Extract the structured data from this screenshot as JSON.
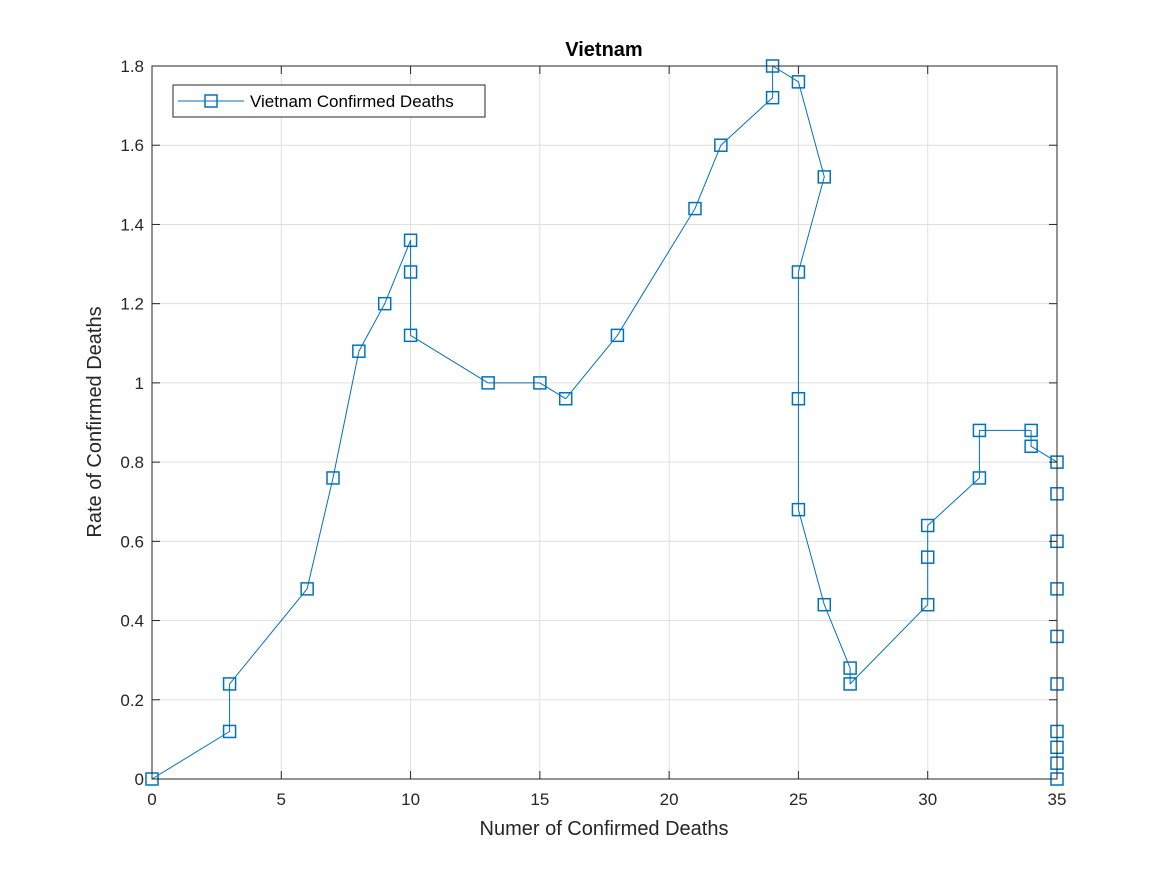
{
  "chart_data": {
    "type": "line",
    "title": "Vietnam",
    "xlabel": "Numer of Confirmed Deaths",
    "ylabel": "Rate of Confirmed Deaths",
    "xlim": [
      0,
      35
    ],
    "ylim": [
      0,
      1.8
    ],
    "xticks": [
      0,
      5,
      10,
      15,
      20,
      25,
      30,
      35
    ],
    "yticks": [
      0,
      0.2,
      0.4,
      0.6,
      0.8,
      1,
      1.2,
      1.4,
      1.6,
      1.8
    ],
    "xtick_labels": [
      "0",
      "5",
      "10",
      "15",
      "20",
      "25",
      "30",
      "35"
    ],
    "ytick_labels": [
      "0",
      "0.2",
      "0.4",
      "0.6",
      "0.8",
      "1",
      "1.2",
      "1.4",
      "1.6",
      "1.8"
    ],
    "grid": true,
    "legend_position": "top-left",
    "series": [
      {
        "name": "Vietnam Confirmed Deaths",
        "color": "#0072BD",
        "marker": "square",
        "x": [
          0,
          3,
          3,
          6,
          7,
          8,
          9,
          10,
          10,
          10,
          13,
          15,
          16,
          18,
          21,
          22,
          24,
          24,
          25,
          26,
          25,
          25,
          25,
          26,
          27,
          27,
          30,
          30,
          30,
          32,
          32,
          34,
          34,
          35,
          35,
          35,
          35,
          35,
          35,
          35,
          35,
          35,
          35
        ],
        "y": [
          0,
          0.12,
          0.24,
          0.48,
          0.76,
          1.08,
          1.2,
          1.36,
          1.28,
          1.12,
          1.0,
          1.0,
          0.96,
          1.12,
          1.44,
          1.6,
          1.72,
          1.8,
          1.76,
          1.52,
          1.28,
          0.96,
          0.68,
          0.44,
          0.28,
          0.24,
          0.44,
          0.56,
          0.64,
          0.76,
          0.88,
          0.88,
          0.84,
          0.8,
          0.72,
          0.6,
          0.48,
          0.36,
          0.24,
          0.12,
          0.08,
          0.04,
          0
        ]
      }
    ]
  }
}
